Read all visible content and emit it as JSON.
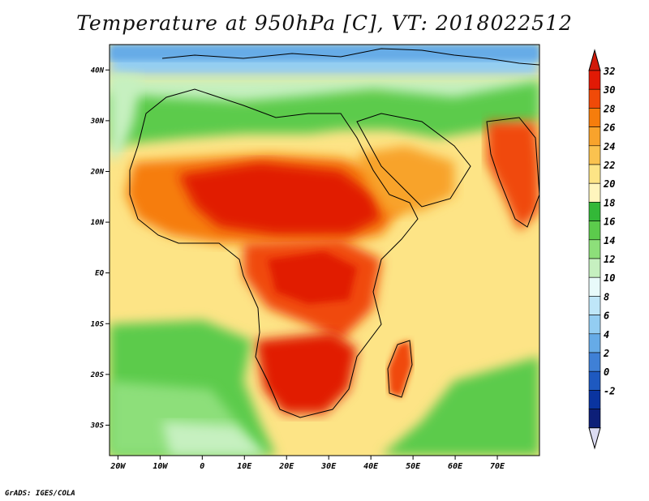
{
  "title": "Temperature at 950hPa [C], VT: 2018022512",
  "footer": "GrADS: IGES/COLA",
  "map": {
    "lon_range": [
      -22,
      80
    ],
    "lat_range": [
      -36,
      45
    ],
    "lon_ticks": [
      {
        "value": -20,
        "label": "20W"
      },
      {
        "value": -10,
        "label": "10W"
      },
      {
        "value": 0,
        "label": "0"
      },
      {
        "value": 10,
        "label": "10E"
      },
      {
        "value": 20,
        "label": "20E"
      },
      {
        "value": 30,
        "label": "30E"
      },
      {
        "value": 40,
        "label": "40E"
      },
      {
        "value": 50,
        "label": "50E"
      },
      {
        "value": 60,
        "label": "60E"
      },
      {
        "value": 70,
        "label": "70E"
      }
    ],
    "lat_ticks": [
      {
        "value": 40,
        "label": "40N"
      },
      {
        "value": 30,
        "label": "30N"
      },
      {
        "value": 20,
        "label": "20N"
      },
      {
        "value": 10,
        "label": "10N"
      },
      {
        "value": 0,
        "label": "EQ"
      },
      {
        "value": -10,
        "label": "10S"
      },
      {
        "value": -20,
        "label": "20S"
      },
      {
        "value": -30,
        "label": "30S"
      }
    ]
  },
  "colorbar": {
    "labels": [
      "32",
      "30",
      "28",
      "26",
      "24",
      "22",
      "20",
      "18",
      "16",
      "14",
      "12",
      "10",
      "8",
      "6",
      "4",
      "2",
      "0",
      "-2"
    ],
    "colors": [
      "#e11a05",
      "#f04a08",
      "#f67d0c",
      "#f8a32c",
      "#fac24f",
      "#fde486",
      "#fff5bd",
      "#33b838",
      "#5ccb4c",
      "#8ddf7a",
      "#c6f0c0",
      "#e8fafa",
      "#bfe6f8",
      "#93cdf2",
      "#66abe7",
      "#3f80d6",
      "#1e59c0",
      "#0a34a0",
      "#0d1f78"
    ],
    "top_arrow_color": "#d21a0a",
    "bottom_arrow_color": "#dcdcf2"
  }
}
